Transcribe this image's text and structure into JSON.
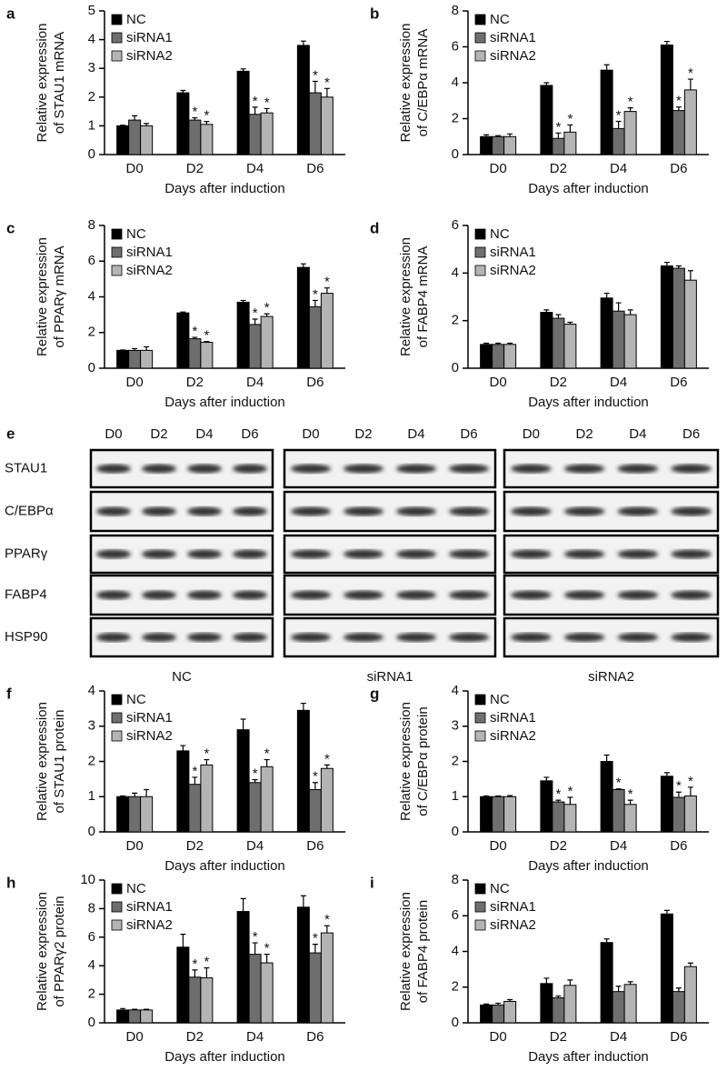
{
  "chart_data": [
    {
      "type": "bar",
      "label": "a",
      "ylabel": [
        "Relative expression",
        "of STAU1 mRNA"
      ],
      "xlabel": "Days after induction",
      "categories": [
        "D0",
        "D2",
        "D4",
        "D6"
      ],
      "ylim": [
        0,
        5
      ],
      "yticks": [
        0,
        1,
        2,
        3,
        4,
        5
      ],
      "legend": "upper left",
      "series": [
        {
          "name": "NC",
          "color": "#000000",
          "values": [
            1,
            2.15,
            2.9,
            3.8
          ],
          "errors": [
            0.02,
            0.08,
            0.08,
            0.15
          ]
        },
        {
          "name": "siRNA1",
          "color": "#6e6e6e",
          "values": [
            1.2,
            1.2,
            1.4,
            2.15
          ],
          "errors": [
            0.15,
            0.08,
            0.25,
            0.4
          ],
          "significance": [
            null,
            "*",
            "*",
            "*"
          ]
        },
        {
          "name": "siRNA2",
          "color": "#b4b4b4",
          "values": [
            1.0,
            1.05,
            1.45,
            2.0
          ],
          "errors": [
            0.08,
            0.1,
            0.15,
            0.3
          ],
          "significance": [
            null,
            "*",
            "*",
            "*"
          ]
        }
      ]
    },
    {
      "type": "bar",
      "label": "b",
      "ylabel": [
        "Relative expression",
        "of C/EBPα mRNA"
      ],
      "xlabel": "Days after induction",
      "categories": [
        "D0",
        "D2",
        "D4",
        "D6"
      ],
      "ylim": [
        0,
        8
      ],
      "yticks": [
        0,
        2,
        4,
        6,
        8
      ],
      "legend": "upper left",
      "series": [
        {
          "name": "NC",
          "color": "#000000",
          "values": [
            1,
            3.85,
            4.7,
            6.1
          ],
          "errors": [
            0.1,
            0.15,
            0.3,
            0.2
          ]
        },
        {
          "name": "siRNA1",
          "color": "#6e6e6e",
          "values": [
            1,
            0.9,
            1.45,
            2.45
          ],
          "errors": [
            0.05,
            0.3,
            0.4,
            0.2
          ],
          "significance": [
            null,
            "*",
            "*",
            "*"
          ]
        },
        {
          "name": "siRNA2",
          "color": "#b4b4b4",
          "values": [
            1,
            1.25,
            2.4,
            3.6
          ],
          "errors": [
            0.15,
            0.4,
            0.2,
            0.6
          ],
          "significance": [
            null,
            "*",
            "*",
            "*"
          ]
        }
      ]
    },
    {
      "type": "bar",
      "label": "c",
      "ylabel": [
        "Relative expression",
        "of PPARγ mRNA"
      ],
      "xlabel": "Days after induction",
      "categories": [
        "D0",
        "D2",
        "D4",
        "D6"
      ],
      "ylim": [
        0,
        8
      ],
      "yticks": [
        0,
        2,
        4,
        6,
        8
      ],
      "legend": "upper left",
      "series": [
        {
          "name": "NC",
          "color": "#000000",
          "values": [
            1,
            3.1,
            3.7,
            5.65
          ],
          "errors": [
            0.02,
            0.05,
            0.1,
            0.2
          ]
        },
        {
          "name": "siRNA1",
          "color": "#6e6e6e",
          "values": [
            1,
            1.65,
            2.45,
            3.45
          ],
          "errors": [
            0.1,
            0.08,
            0.3,
            0.35
          ],
          "significance": [
            null,
            "*",
            "*",
            "*"
          ]
        },
        {
          "name": "siRNA2",
          "color": "#b4b4b4",
          "values": [
            1,
            1.45,
            2.9,
            4.2
          ],
          "errors": [
            0.2,
            0.05,
            0.15,
            0.3
          ],
          "significance": [
            null,
            "*",
            "*",
            "*"
          ]
        }
      ]
    },
    {
      "type": "bar",
      "label": "d",
      "ylabel": [
        "Relative expression",
        "of FABP4 mRNA"
      ],
      "xlabel": "Days after induction",
      "categories": [
        "D0",
        "D2",
        "D4",
        "D6"
      ],
      "ylim": [
        0,
        6
      ],
      "yticks": [
        0,
        2,
        4,
        6
      ],
      "legend": "upper left",
      "series": [
        {
          "name": "NC",
          "color": "#000000",
          "values": [
            1,
            2.35,
            2.95,
            4.3
          ],
          "errors": [
            0.05,
            0.1,
            0.2,
            0.15
          ]
        },
        {
          "name": "siRNA1",
          "color": "#6e6e6e",
          "values": [
            1,
            2.1,
            2.4,
            4.2
          ],
          "errors": [
            0.05,
            0.15,
            0.35,
            0.1
          ]
        },
        {
          "name": "siRNA2",
          "color": "#b4b4b4",
          "values": [
            1,
            1.85,
            2.25,
            3.7
          ],
          "errors": [
            0.05,
            0.08,
            0.2,
            0.4
          ]
        }
      ]
    },
    {
      "type": "bar",
      "label": "f",
      "ylabel": [
        "Relative expression",
        "of STAU1 protein"
      ],
      "xlabel": "Days after induction",
      "categories": [
        "D0",
        "D2",
        "D4",
        "D6"
      ],
      "ylim": [
        0,
        4
      ],
      "yticks": [
        0,
        1,
        2,
        3,
        4
      ],
      "legend": "upper left",
      "series": [
        {
          "name": "NC",
          "color": "#000000",
          "values": [
            1,
            2.3,
            2.9,
            3.45
          ],
          "errors": [
            0.02,
            0.15,
            0.3,
            0.2
          ]
        },
        {
          "name": "siRNA1",
          "color": "#6e6e6e",
          "values": [
            1,
            1.35,
            1.4,
            1.2
          ],
          "errors": [
            0.1,
            0.2,
            0.08,
            0.2
          ],
          "significance": [
            null,
            "*",
            "*",
            "*"
          ]
        },
        {
          "name": "siRNA2",
          "color": "#b4b4b4",
          "values": [
            1,
            1.9,
            1.85,
            1.8
          ],
          "errors": [
            0.2,
            0.15,
            0.2,
            0.1
          ],
          "significance": [
            null,
            "*",
            "*",
            "*"
          ]
        }
      ]
    },
    {
      "type": "bar",
      "label": "g",
      "ylabel": [
        "Relative expression",
        "of C/EBPα protein"
      ],
      "xlabel": "Days after induction",
      "categories": [
        "D0",
        "D2",
        "D4",
        "D6"
      ],
      "ylim": [
        0,
        4
      ],
      "yticks": [
        0,
        1,
        2,
        3,
        4
      ],
      "legend": "upper left",
      "series": [
        {
          "name": "NC",
          "color": "#000000",
          "values": [
            1,
            1.45,
            2.0,
            1.58
          ],
          "errors": [
            0.02,
            0.1,
            0.18,
            0.1
          ]
        },
        {
          "name": "siRNA1",
          "color": "#6e6e6e",
          "values": [
            1,
            0.85,
            1.2,
            0.98
          ],
          "errors": [
            0.02,
            0.05,
            0.02,
            0.15
          ],
          "significance": [
            null,
            "*",
            "*",
            "*"
          ]
        },
        {
          "name": "siRNA2",
          "color": "#b4b4b4",
          "values": [
            1,
            0.78,
            0.78,
            1.02
          ],
          "errors": [
            0.03,
            0.2,
            0.12,
            0.25
          ],
          "significance": [
            null,
            "*",
            "*",
            "*"
          ]
        }
      ]
    },
    {
      "type": "bar",
      "label": "h",
      "ylabel": [
        "Relative expression",
        "of PPARγ2 protein"
      ],
      "xlabel": "Days after induction",
      "categories": [
        "D0",
        "D2",
        "D4",
        "D6"
      ],
      "ylim": [
        0,
        10
      ],
      "yticks": [
        0,
        2,
        4,
        6,
        8,
        10
      ],
      "legend": "upper left",
      "series": [
        {
          "name": "NC",
          "color": "#000000",
          "values": [
            0.9,
            5.3,
            7.8,
            8.1
          ],
          "errors": [
            0.1,
            0.9,
            0.9,
            0.8
          ]
        },
        {
          "name": "siRNA1",
          "color": "#6e6e6e",
          "values": [
            0.9,
            3.2,
            4.8,
            4.9
          ],
          "errors": [
            0.05,
            0.5,
            0.8,
            0.6
          ],
          "significance": [
            null,
            "*",
            "*",
            "*"
          ]
        },
        {
          "name": "siRNA2",
          "color": "#b4b4b4",
          "values": [
            0.9,
            3.15,
            4.2,
            6.3
          ],
          "errors": [
            0.05,
            0.7,
            0.6,
            0.5
          ],
          "significance": [
            null,
            "*",
            "*",
            "*"
          ]
        }
      ]
    },
    {
      "type": "bar",
      "label": "i",
      "ylabel": [
        "Relative expression",
        "of FABP4 protein"
      ],
      "xlabel": "Days after induction",
      "categories": [
        "D0",
        "D2",
        "D4",
        "D6"
      ],
      "ylim": [
        0,
        8
      ],
      "yticks": [
        0,
        2,
        4,
        6,
        8
      ],
      "legend": "upper left",
      "series": [
        {
          "name": "NC",
          "color": "#000000",
          "values": [
            1,
            2.2,
            4.5,
            6.1
          ],
          "errors": [
            0.05,
            0.3,
            0.2,
            0.2
          ]
        },
        {
          "name": "siRNA1",
          "color": "#6e6e6e",
          "values": [
            1,
            1.4,
            1.75,
            1.75
          ],
          "errors": [
            0.1,
            0.1,
            0.3,
            0.2
          ]
        },
        {
          "name": "siRNA2",
          "color": "#b4b4b4",
          "values": [
            1.2,
            2.1,
            2.15,
            3.15
          ],
          "errors": [
            0.1,
            0.3,
            0.15,
            0.2
          ]
        }
      ]
    }
  ],
  "blot": {
    "label": "e",
    "lanes": [
      "D0",
      "D2",
      "D4",
      "D6"
    ],
    "groups": [
      "NC",
      "siRNA1",
      "siRNA2"
    ],
    "proteins": [
      "STAU1",
      "C/EBPα",
      "PPARγ",
      "FABP4",
      "HSP90"
    ]
  }
}
